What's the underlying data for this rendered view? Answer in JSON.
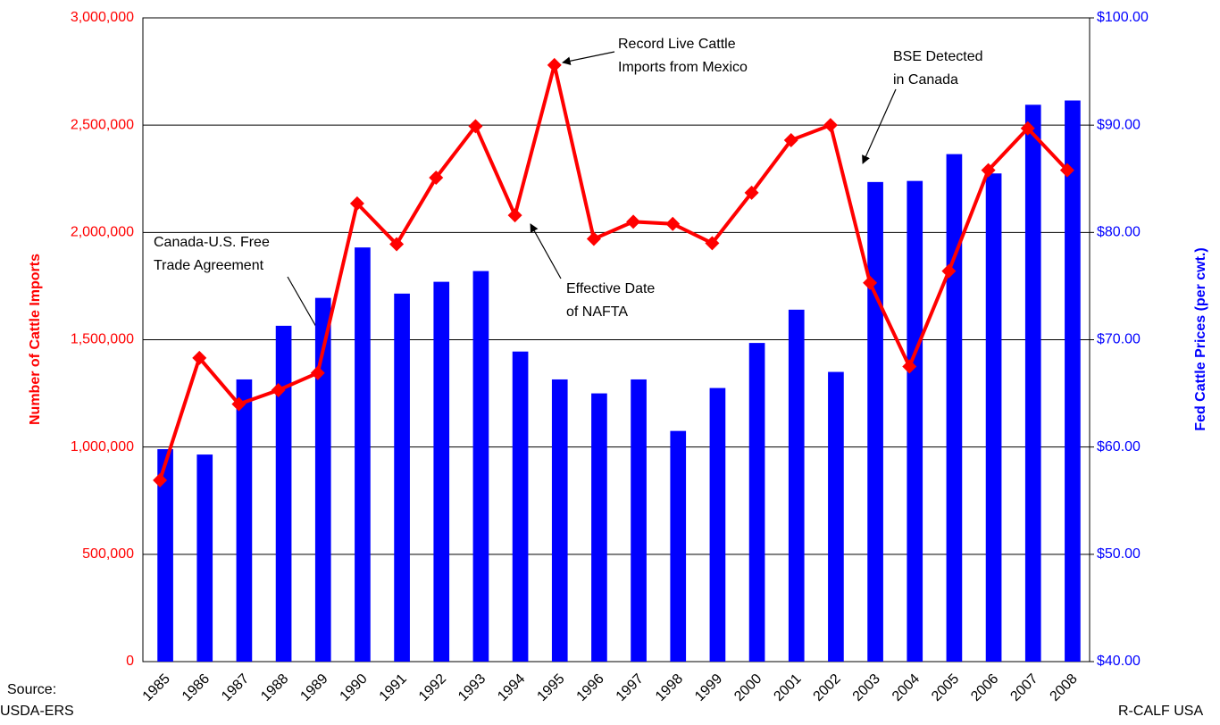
{
  "chart_data": {
    "type": "bar",
    "categories": [
      "1985",
      "1986",
      "1987",
      "1988",
      "1989",
      "1990",
      "1991",
      "1992",
      "1993",
      "1994",
      "1995",
      "1996",
      "1997",
      "1998",
      "1999",
      "2000",
      "2001",
      "2002",
      "2003",
      "2004",
      "2005",
      "2006",
      "2007",
      "2008"
    ],
    "series": [
      {
        "name": "Fed Cattle Prices",
        "type": "bar",
        "axis": "y2",
        "color": "#0000ff",
        "values": [
          59.8,
          59.3,
          66.3,
          71.3,
          73.9,
          78.6,
          74.3,
          75.4,
          76.4,
          68.9,
          66.3,
          65.0,
          66.3,
          61.5,
          65.5,
          69.7,
          72.8,
          67.0,
          84.7,
          84.8,
          87.3,
          85.5,
          91.9,
          92.3
        ]
      },
      {
        "name": "Number of Cattle Imports",
        "type": "line",
        "color": "#ff0000",
        "values": [
          845000,
          1415000,
          1200000,
          1265000,
          1345000,
          2135000,
          1945000,
          2255000,
          2495000,
          2080000,
          2780000,
          1970000,
          2050000,
          2040000,
          1950000,
          2185000,
          2430000,
          2500000,
          1765000,
          1375000,
          1820000,
          2290000,
          2485000,
          2290000
        ]
      }
    ],
    "ylabel": "Number of Cattle Imports",
    "y2label": "Fed Cattle Prices (per cwt.)",
    "ylim": [
      0,
      3000000
    ],
    "yticks": [
      0,
      {
        "value": 500000,
        "label": "500,000"
      },
      {
        "value": 1000000,
        "label": "1,000,000"
      },
      {
        "value": 1500000,
        "label": "1,500,000"
      },
      {
        "value": 2000000,
        "label": "2,000,000"
      },
      {
        "value": 2500000,
        "label": "2,500,000"
      },
      {
        "value": 3000000,
        "label": "3,000,000"
      }
    ],
    "y2lim": [
      40,
      100
    ],
    "y2ticks": [
      {
        "value": 40,
        "label": "$40.00"
      },
      {
        "value": 50,
        "label": "$50.00"
      },
      {
        "value": 60,
        "label": "$60.00"
      },
      {
        "value": 70,
        "label": "$70.00"
      },
      {
        "value": 80,
        "label": "$80.00"
      },
      {
        "value": 90,
        "label": "$90.00"
      },
      {
        "value": 100,
        "label": "$100.00"
      }
    ],
    "grid": true,
    "annotations": [
      {
        "lines": [
          "Canada-U.S. Free",
          "Trade Agreement"
        ]
      },
      {
        "lines": [
          "Effective Date",
          "of NAFTA"
        ]
      },
      {
        "lines": [
          "Record Live Cattle",
          "Imports from Mexico"
        ]
      },
      {
        "lines": [
          "BSE Detected",
          "in Canada"
        ]
      }
    ],
    "source": [
      "Source:",
      "USDA-ERS"
    ],
    "credit": "R-CALF USA"
  }
}
